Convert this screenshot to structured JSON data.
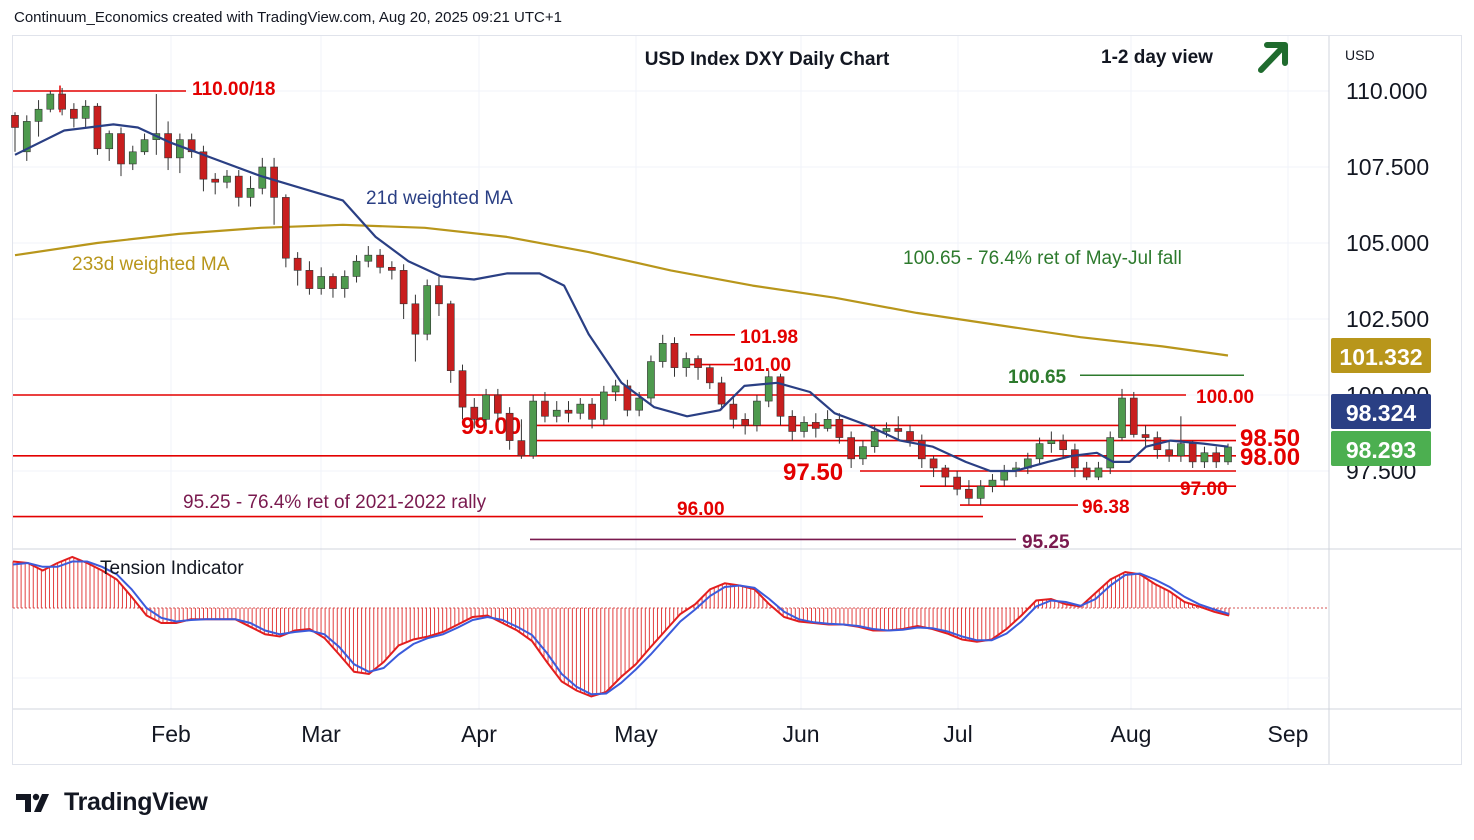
{
  "header": {
    "credit": "Continuum_Economics created with TradingView.com, Aug 20, 2025 09:21 UTC+1"
  },
  "branding": {
    "name": "TradingView"
  },
  "chart_data": {
    "type": "candlestick",
    "title": "USD Index DXY Daily Chart",
    "view": "1-2 day view",
    "view_direction": "up",
    "currency_label": "USD",
    "y_ticks": [
      "110.000",
      "107.500",
      "105.000",
      "102.500",
      "100.000",
      "97.500"
    ],
    "ylim": [
      94.7,
      111.5
    ],
    "x_ticks": [
      "Feb",
      "Mar",
      "Apr",
      "May",
      "Jun",
      "Jul",
      "Aug",
      "Sep"
    ],
    "price_badges": [
      {
        "value": "101.332",
        "color": "#b8961b"
      },
      {
        "value": "98.324",
        "color": "#2a3f84"
      },
      {
        "value": "98.293",
        "color": "#4caf50"
      }
    ],
    "levels": [
      {
        "label": "110.00/18",
        "value": 110.0,
        "color": "#e30000"
      },
      {
        "label": "101.98",
        "value": 101.98,
        "color": "#e30000"
      },
      {
        "label": "101.00",
        "value": 101.0,
        "color": "#e30000"
      },
      {
        "label": "100.65",
        "value": 100.65,
        "color": "#2d7a2d"
      },
      {
        "label": "100.00",
        "value": 100.0,
        "color": "#e30000"
      },
      {
        "label": "99.00",
        "value": 99.0,
        "color": "#e30000"
      },
      {
        "label": "98.50",
        "value": 98.5,
        "color": "#e30000"
      },
      {
        "label": "98.00",
        "value": 98.0,
        "color": "#e30000"
      },
      {
        "label": "97.50",
        "value": 97.5,
        "color": "#e30000"
      },
      {
        "label": "97.00",
        "value": 97.0,
        "color": "#e30000"
      },
      {
        "label": "96.38",
        "value": 96.38,
        "color": "#e30000"
      },
      {
        "label": "96.00",
        "value": 96.0,
        "color": "#e30000"
      },
      {
        "label": "95.25",
        "value": 95.25,
        "color": "#7a1a4f"
      }
    ],
    "annotations": [
      {
        "text": "21d weighted MA",
        "color": "#2a3f84"
      },
      {
        "text": "233d weighted MA",
        "color": "#b8961b"
      },
      {
        "text": "100.65 - 76.4% ret of May-Jul fall",
        "color": "#2d7a2d"
      },
      {
        "text": "95.25 - 76.4% ret of 2021-2022 rally",
        "color": "#7a1a4f"
      }
    ],
    "series": [
      {
        "name": "21d weighted MA",
        "color": "#2a3f84",
        "points": [
          [
            0,
            107.9
          ],
          [
            12,
            108.7
          ],
          [
            24,
            108.9
          ],
          [
            30,
            108.8
          ],
          [
            38,
            108.3
          ],
          [
            48,
            107.8
          ],
          [
            60,
            107.2
          ],
          [
            70,
            106.8
          ],
          [
            80,
            106.4
          ],
          [
            88,
            105.2
          ],
          [
            96,
            104.4
          ],
          [
            104,
            103.9
          ],
          [
            112,
            103.8
          ],
          [
            120,
            104.0
          ],
          [
            128,
            104.0
          ],
          [
            134,
            103.6
          ],
          [
            140,
            102.0
          ],
          [
            148,
            100.4
          ],
          [
            156,
            99.6
          ],
          [
            164,
            99.3
          ],
          [
            172,
            99.5
          ],
          [
            178,
            100.3
          ],
          [
            186,
            100.4
          ],
          [
            194,
            100.1
          ],
          [
            200,
            99.4
          ],
          [
            208,
            99.0
          ],
          [
            216,
            98.5
          ],
          [
            224,
            98.3
          ],
          [
            232,
            97.8
          ],
          [
            238,
            97.5
          ],
          [
            244,
            97.5
          ],
          [
            252,
            97.8
          ],
          [
            258,
            98.0
          ],
          [
            264,
            98.1
          ],
          [
            268,
            97.8
          ],
          [
            272,
            97.8
          ],
          [
            276,
            98.3
          ],
          [
            282,
            98.5
          ],
          [
            290,
            98.4
          ],
          [
            296,
            98.3
          ]
        ]
      },
      {
        "name": "233d weighted MA",
        "color": "#b8961b",
        "points": [
          [
            0,
            104.6
          ],
          [
            20,
            105.0
          ],
          [
            40,
            105.3
          ],
          [
            60,
            105.5
          ],
          [
            80,
            105.6
          ],
          [
            100,
            105.5
          ],
          [
            120,
            105.2
          ],
          [
            140,
            104.7
          ],
          [
            160,
            104.1
          ],
          [
            180,
            103.6
          ],
          [
            200,
            103.2
          ],
          [
            220,
            102.7
          ],
          [
            240,
            102.3
          ],
          [
            260,
            101.9
          ],
          [
            280,
            101.6
          ],
          [
            296,
            101.3
          ]
        ]
      }
    ],
    "candles": [
      [
        109.2,
        108.8,
        109.3,
        108.0
      ],
      [
        108.0,
        109.0,
        109.2,
        107.7
      ],
      [
        109.0,
        109.4,
        109.7,
        108.5
      ],
      [
        109.4,
        109.9,
        110.0,
        109.3
      ],
      [
        109.9,
        109.4,
        110.1,
        109.2
      ],
      [
        109.4,
        109.1,
        109.6,
        108.8
      ],
      [
        109.1,
        109.5,
        109.7,
        108.8
      ],
      [
        109.5,
        108.1,
        109.6,
        107.9
      ],
      [
        108.1,
        108.6,
        108.7,
        107.7
      ],
      [
        108.6,
        107.6,
        108.8,
        107.2
      ],
      [
        107.6,
        108.0,
        108.2,
        107.4
      ],
      [
        108.0,
        108.4,
        108.6,
        107.9
      ],
      [
        108.4,
        108.6,
        109.9,
        107.9
      ],
      [
        108.6,
        107.8,
        109.0,
        107.4
      ],
      [
        107.8,
        108.4,
        108.6,
        107.3
      ],
      [
        108.4,
        108.0,
        108.6,
        107.8
      ],
      [
        108.0,
        107.1,
        108.2,
        106.7
      ],
      [
        107.1,
        107.0,
        107.3,
        106.6
      ],
      [
        107.0,
        107.2,
        107.4,
        106.8
      ],
      [
        107.2,
        106.5,
        107.4,
        106.2
      ],
      [
        106.5,
        106.8,
        107.2,
        106.2
      ],
      [
        106.8,
        107.5,
        107.8,
        106.6
      ],
      [
        107.5,
        106.5,
        107.8,
        105.6
      ],
      [
        106.5,
        104.5,
        106.6,
        104.2
      ],
      [
        104.5,
        104.1,
        104.7,
        103.6
      ],
      [
        104.1,
        103.5,
        104.4,
        103.3
      ],
      [
        103.5,
        103.9,
        104.2,
        103.3
      ],
      [
        103.9,
        103.5,
        104.0,
        103.2
      ],
      [
        103.5,
        103.9,
        104.1,
        103.2
      ],
      [
        103.9,
        104.4,
        104.6,
        103.7
      ],
      [
        104.4,
        104.6,
        104.9,
        104.2
      ],
      [
        104.6,
        104.2,
        104.8,
        104.0
      ],
      [
        104.2,
        104.1,
        104.4,
        103.8
      ],
      [
        104.1,
        103.0,
        104.3,
        102.5
      ],
      [
        103.0,
        102.0,
        103.3,
        101.1
      ],
      [
        102.0,
        103.6,
        103.8,
        101.8
      ],
      [
        103.6,
        103.0,
        103.9,
        102.6
      ],
      [
        103.0,
        100.8,
        103.1,
        100.4
      ],
      [
        100.8,
        99.6,
        101.0,
        99.2
      ],
      [
        99.6,
        99.2,
        99.9,
        98.9
      ],
      [
        99.2,
        100.0,
        100.2,
        99.0
      ],
      [
        100.0,
        99.4,
        100.2,
        99.1
      ],
      [
        99.4,
        98.5,
        99.6,
        98.2
      ],
      [
        98.5,
        98.0,
        99.2,
        97.9
      ],
      [
        98.0,
        99.8,
        100.0,
        97.9
      ],
      [
        99.8,
        99.3,
        100.1,
        99.1
      ],
      [
        99.3,
        99.5,
        99.8,
        99.1
      ],
      [
        99.5,
        99.4,
        99.8,
        99.1
      ],
      [
        99.4,
        99.7,
        99.9,
        99.2
      ],
      [
        99.7,
        99.2,
        99.9,
        98.9
      ],
      [
        99.2,
        100.1,
        100.3,
        99.0
      ],
      [
        100.1,
        100.3,
        100.5,
        99.8
      ],
      [
        100.3,
        99.5,
        100.5,
        99.3
      ],
      [
        99.5,
        99.9,
        100.1,
        99.3
      ],
      [
        99.9,
        101.1,
        101.3,
        99.7
      ],
      [
        101.1,
        101.7,
        101.98,
        100.9
      ],
      [
        101.7,
        100.9,
        101.9,
        100.6
      ],
      [
        100.9,
        101.2,
        101.4,
        100.6
      ],
      [
        101.2,
        100.9,
        101.3,
        100.5
      ],
      [
        100.9,
        100.4,
        101.0,
        100.2
      ],
      [
        100.4,
        99.7,
        100.6,
        99.5
      ],
      [
        99.7,
        99.2,
        99.9,
        98.9
      ],
      [
        99.2,
        99.0,
        99.4,
        98.7
      ],
      [
        99.0,
        99.8,
        100.0,
        98.8
      ],
      [
        99.8,
        100.6,
        100.8,
        99.6
      ],
      [
        100.6,
        99.3,
        100.7,
        99.0
      ],
      [
        99.3,
        98.8,
        99.5,
        98.5
      ],
      [
        98.8,
        99.1,
        99.3,
        98.6
      ],
      [
        99.1,
        98.9,
        99.4,
        98.6
      ],
      [
        98.9,
        99.2,
        99.5,
        98.8
      ],
      [
        99.2,
        98.6,
        99.4,
        98.4
      ],
      [
        98.6,
        97.9,
        98.8,
        97.6
      ],
      [
        97.9,
        98.3,
        98.5,
        97.7
      ],
      [
        98.3,
        98.8,
        99.0,
        98.1
      ],
      [
        98.8,
        98.9,
        99.1,
        98.6
      ],
      [
        98.9,
        98.8,
        99.3,
        98.5
      ],
      [
        98.8,
        98.5,
        99.0,
        98.3
      ],
      [
        98.5,
        97.9,
        98.7,
        97.6
      ],
      [
        97.9,
        97.6,
        98.0,
        97.3
      ],
      [
        97.6,
        97.3,
        97.7,
        97.0
      ],
      [
        97.3,
        96.9,
        97.5,
        96.7
      ],
      [
        96.9,
        96.6,
        97.2,
        96.4
      ],
      [
        96.6,
        97.0,
        97.2,
        96.38
      ],
      [
        97.0,
        97.2,
        97.4,
        96.8
      ],
      [
        97.2,
        97.5,
        97.7,
        97.0
      ],
      [
        97.5,
        97.6,
        97.8,
        97.3
      ],
      [
        97.6,
        97.9,
        98.1,
        97.4
      ],
      [
        97.9,
        98.4,
        98.6,
        97.7
      ],
      [
        98.4,
        98.5,
        98.8,
        98.1
      ],
      [
        98.5,
        98.2,
        98.7,
        97.9
      ],
      [
        98.2,
        97.6,
        98.4,
        97.3
      ],
      [
        97.6,
        97.3,
        97.8,
        97.2
      ],
      [
        97.3,
        97.6,
        97.8,
        97.2
      ],
      [
        97.6,
        98.6,
        98.8,
        97.4
      ],
      [
        98.6,
        99.9,
        100.2,
        98.5
      ],
      [
        99.9,
        98.7,
        100.1,
        98.6
      ],
      [
        98.7,
        98.6,
        99.0,
        98.3
      ],
      [
        98.6,
        98.2,
        98.8,
        97.9
      ],
      [
        98.2,
        98.0,
        98.5,
        97.8
      ],
      [
        98.0,
        98.4,
        99.3,
        97.8
      ],
      [
        98.4,
        97.8,
        98.5,
        97.6
      ],
      [
        97.8,
        98.1,
        98.3,
        97.6
      ],
      [
        98.1,
        97.8,
        98.3,
        97.6
      ],
      [
        97.8,
        98.29,
        98.4,
        97.7
      ]
    ],
    "candle_colors": {
      "up": "#4e9a4e",
      "down": "#c81e1e"
    },
    "tension_indicator": {
      "title": "Tension Indicator",
      "oscillator": [
        0.62,
        0.6,
        0.5,
        0.6,
        0.68,
        0.6,
        0.5,
        0.38,
        0.15,
        -0.1,
        -0.2,
        -0.2,
        -0.15,
        -0.15,
        -0.15,
        -0.15,
        -0.25,
        -0.35,
        -0.38,
        -0.3,
        -0.28,
        -0.4,
        -0.62,
        -0.85,
        -0.88,
        -0.72,
        -0.5,
        -0.42,
        -0.38,
        -0.32,
        -0.22,
        -0.12,
        -0.1,
        -0.2,
        -0.3,
        -0.44,
        -0.72,
        -0.98,
        -1.1,
        -1.18,
        -1.12,
        -0.92,
        -0.75,
        -0.52,
        -0.3,
        -0.08,
        0.05,
        0.25,
        0.33,
        0.3,
        0.25,
        0.05,
        -0.12,
        -0.18,
        -0.2,
        -0.22,
        -0.22,
        -0.25,
        -0.3,
        -0.3,
        -0.28,
        -0.24,
        -0.28,
        -0.34,
        -0.42,
        -0.45,
        -0.42,
        -0.28,
        -0.1,
        0.1,
        0.12,
        0.05,
        0.02,
        0.2,
        0.38,
        0.48,
        0.45,
        0.32,
        0.22,
        0.08,
        0.02,
        -0.05,
        -0.1
      ],
      "signal": [
        0.58,
        0.6,
        0.55,
        0.55,
        0.62,
        0.62,
        0.55,
        0.45,
        0.25,
        0.0,
        -0.13,
        -0.18,
        -0.16,
        -0.15,
        -0.15,
        -0.15,
        -0.2,
        -0.3,
        -0.35,
        -0.32,
        -0.3,
        -0.35,
        -0.52,
        -0.75,
        -0.85,
        -0.8,
        -0.62,
        -0.48,
        -0.4,
        -0.35,
        -0.26,
        -0.16,
        -0.12,
        -0.16,
        -0.25,
        -0.36,
        -0.6,
        -0.88,
        -1.05,
        -1.15,
        -1.14,
        -1.0,
        -0.82,
        -0.62,
        -0.4,
        -0.18,
        -0.02,
        0.16,
        0.28,
        0.3,
        0.27,
        0.12,
        -0.05,
        -0.15,
        -0.19,
        -0.21,
        -0.22,
        -0.24,
        -0.28,
        -0.3,
        -0.29,
        -0.26,
        -0.27,
        -0.31,
        -0.38,
        -0.43,
        -0.43,
        -0.34,
        -0.18,
        0.02,
        0.1,
        0.08,
        0.03,
        0.12,
        0.3,
        0.44,
        0.46,
        0.38,
        0.28,
        0.15,
        0.05,
        -0.02,
        -0.08
      ]
    }
  }
}
